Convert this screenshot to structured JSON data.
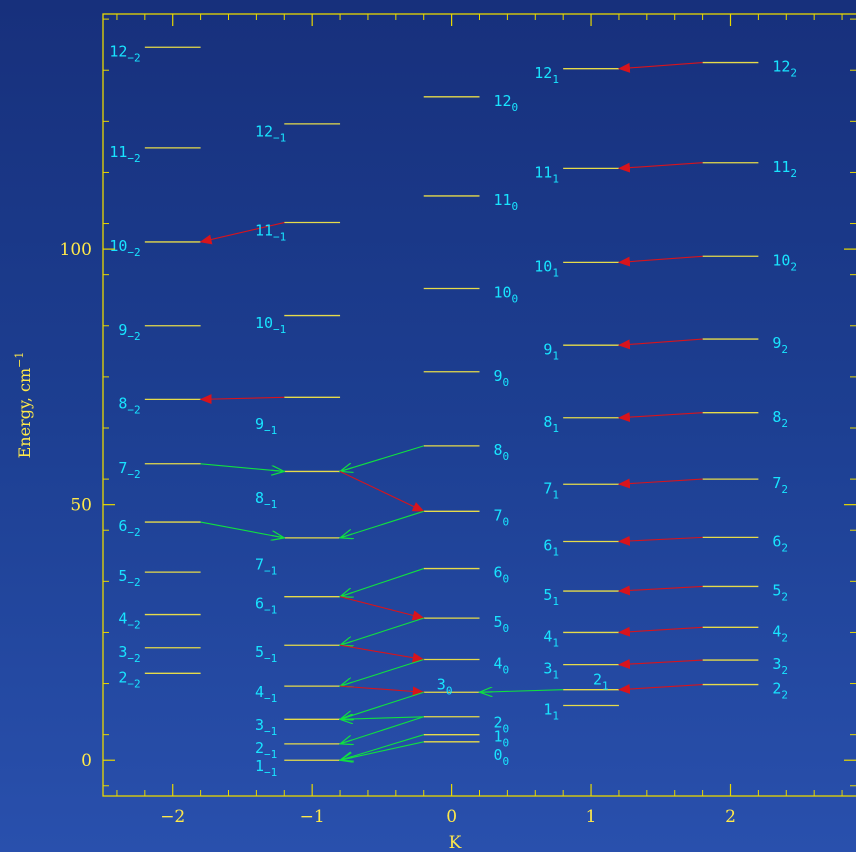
{
  "colors": {
    "frame": "#e8d800",
    "axis_text": "#ffe94a",
    "level_line": "#e6db4a",
    "label": "#18e4ff",
    "red_arrow": "#d8141c",
    "green_arrow": "#10e040"
  },
  "chart_data": {
    "type": "scatter",
    "xlabel": "K",
    "ylabel": "Energy, cm",
    "ylabel_sup": "−1",
    "xlim": [
      -2.5,
      2.9
    ],
    "ylim": [
      -7,
      146
    ],
    "x_ticks": [
      {
        "value": -2,
        "label": "−2"
      },
      {
        "value": -1,
        "label": "−1"
      },
      {
        "value": 0,
        "label": "0"
      },
      {
        "value": 1,
        "label": "1"
      },
      {
        "value": 2,
        "label": "2"
      }
    ],
    "y_ticks": [
      {
        "value": 0,
        "label": "0"
      },
      {
        "value": 50,
        "label": "50"
      },
      {
        "value": 100,
        "label": "100"
      }
    ],
    "levels": [
      {
        "x0": -2.2,
        "x1": -1.8,
        "y": 139.5,
        "n": "12",
        "k": "−2",
        "label_x": -2.23,
        "label_y": 138.7,
        "anchor": "end"
      },
      {
        "x0": -2.2,
        "x1": -1.8,
        "y": 119.8,
        "n": "11",
        "k": "−2",
        "label_x": -2.23,
        "label_y": 119.0,
        "anchor": "end"
      },
      {
        "x0": -2.2,
        "x1": -1.8,
        "y": 101.4,
        "n": "10",
        "k": "−2",
        "label_x": -2.23,
        "label_y": 100.6,
        "anchor": "end"
      },
      {
        "x0": -2.2,
        "x1": -1.8,
        "y": 85.0,
        "n": "9",
        "k": "−2",
        "label_x": -2.23,
        "label_y": 84.2,
        "anchor": "end"
      },
      {
        "x0": -2.2,
        "x1": -1.8,
        "y": 70.6,
        "n": "8",
        "k": "−2",
        "label_x": -2.23,
        "label_y": 69.8,
        "anchor": "end"
      },
      {
        "x0": -2.2,
        "x1": -1.8,
        "y": 58.0,
        "n": "7",
        "k": "−2",
        "label_x": -2.23,
        "label_y": 57.2,
        "anchor": "end"
      },
      {
        "x0": -2.2,
        "x1": -1.8,
        "y": 46.6,
        "n": "6",
        "k": "−2",
        "label_x": -2.23,
        "label_y": 45.8,
        "anchor": "end"
      },
      {
        "x0": -2.2,
        "x1": -1.8,
        "y": 36.8,
        "n": "5",
        "k": "−2",
        "label_x": -2.23,
        "label_y": 36.0,
        "anchor": "end"
      },
      {
        "x0": -2.2,
        "x1": -1.8,
        "y": 28.5,
        "n": "4",
        "k": "−2",
        "label_x": -2.23,
        "label_y": 27.7,
        "anchor": "end"
      },
      {
        "x0": -2.2,
        "x1": -1.8,
        "y": 22.0,
        "n": "3",
        "k": "−2",
        "label_x": -2.23,
        "label_y": 21.2,
        "anchor": "end"
      },
      {
        "x0": -2.2,
        "x1": -1.8,
        "y": 17.0,
        "n": "2",
        "k": "−2",
        "label_x": -2.23,
        "label_y": 16.2,
        "anchor": "end"
      },
      {
        "x0": -1.2,
        "x1": -0.8,
        "y": 124.5,
        "n": "12",
        "k": "−1",
        "label_x": -1.41,
        "label_y": 123.0,
        "anchor": "start"
      },
      {
        "x0": -1.2,
        "x1": -0.8,
        "y": 105.2,
        "n": "11",
        "k": "−1",
        "label_x": -1.41,
        "label_y": 103.6,
        "anchor": "start"
      },
      {
        "x0": -1.2,
        "x1": -0.8,
        "y": 87.0,
        "n": "10",
        "k": "−1",
        "label_x": -1.41,
        "label_y": 85.5,
        "anchor": "start"
      },
      {
        "x0": -1.2,
        "x1": -0.8,
        "y": 71.0,
        "n": "9",
        "k": "−1",
        "label_x": -1.41,
        "label_y": 65.8,
        "anchor": "start"
      },
      {
        "x0": -1.2,
        "x1": -0.8,
        "y": 56.5,
        "n": "8",
        "k": "−1",
        "label_x": -1.41,
        "label_y": 51.3,
        "anchor": "start"
      },
      {
        "x0": -1.2,
        "x1": -0.8,
        "y": 43.5,
        "n": "7",
        "k": "−1",
        "label_x": -1.41,
        "label_y": 38.3,
        "anchor": "start"
      },
      {
        "x0": -1.2,
        "x1": -0.8,
        "y": 32.0,
        "n": "6",
        "k": "−1",
        "label_x": -1.41,
        "label_y": 30.7,
        "anchor": "start"
      },
      {
        "x0": -1.2,
        "x1": -0.8,
        "y": 22.5,
        "n": "5",
        "k": "−1",
        "label_x": -1.41,
        "label_y": 21.2,
        "anchor": "start"
      },
      {
        "x0": -1.2,
        "x1": -0.8,
        "y": 14.5,
        "n": "4",
        "k": "−1",
        "label_x": -1.41,
        "label_y": 13.3,
        "anchor": "start"
      },
      {
        "x0": -1.2,
        "x1": -0.8,
        "y": 8.0,
        "n": "3",
        "k": "−1",
        "label_x": -1.41,
        "label_y": 6.9,
        "anchor": "start"
      },
      {
        "x0": -1.2,
        "x1": -0.8,
        "y": 3.2,
        "n": "2",
        "k": "−1",
        "label_x": -1.41,
        "label_y": 2.4,
        "anchor": "start"
      },
      {
        "x0": -1.2,
        "x1": -0.8,
        "y": 0.0,
        "n": "1",
        "k": "−1",
        "label_x": -1.41,
        "label_y": -1.1,
        "anchor": "start"
      },
      {
        "x0": -0.2,
        "x1": 0.2,
        "y": 129.8,
        "n": "12",
        "k": "0",
        "label_x": 0.3,
        "label_y": 129.0,
        "anchor": "start"
      },
      {
        "x0": -0.2,
        "x1": 0.2,
        "y": 110.4,
        "n": "11",
        "k": "0",
        "label_x": 0.3,
        "label_y": 109.6,
        "anchor": "start"
      },
      {
        "x0": -0.2,
        "x1": 0.2,
        "y": 92.3,
        "n": "10",
        "k": "0",
        "label_x": 0.3,
        "label_y": 91.5,
        "anchor": "start"
      },
      {
        "x0": -0.2,
        "x1": 0.2,
        "y": 76.0,
        "n": "9",
        "k": "0",
        "label_x": 0.3,
        "label_y": 75.2,
        "anchor": "start"
      },
      {
        "x0": -0.2,
        "x1": 0.2,
        "y": 61.5,
        "n": "8",
        "k": "0",
        "label_x": 0.3,
        "label_y": 60.7,
        "anchor": "start"
      },
      {
        "x0": -0.2,
        "x1": 0.2,
        "y": 48.7,
        "n": "7",
        "k": "0",
        "label_x": 0.3,
        "label_y": 47.9,
        "anchor": "start"
      },
      {
        "x0": -0.2,
        "x1": 0.2,
        "y": 37.5,
        "n": "6",
        "k": "0",
        "label_x": 0.3,
        "label_y": 36.7,
        "anchor": "start"
      },
      {
        "x0": -0.2,
        "x1": 0.2,
        "y": 27.8,
        "n": "5",
        "k": "0",
        "label_x": 0.3,
        "label_y": 27.0,
        "anchor": "start"
      },
      {
        "x0": -0.2,
        "x1": 0.2,
        "y": 19.7,
        "n": "4",
        "k": "0",
        "label_x": 0.3,
        "label_y": 18.9,
        "anchor": "start"
      },
      {
        "x0": -0.2,
        "x1": 0.2,
        "y": 13.3,
        "n": "3",
        "k": "0",
        "label_x": -0.05,
        "label_y": 14.8,
        "anchor": "middle"
      },
      {
        "x0": -0.2,
        "x1": 0.2,
        "y": 8.5,
        "n": "2",
        "k": "0",
        "label_x": 0.3,
        "label_y": 7.4,
        "anchor": "start"
      },
      {
        "x0": -0.2,
        "x1": 0.2,
        "y": 5.0,
        "n": "1",
        "k": "0",
        "label_x": 0.3,
        "label_y": 4.6,
        "anchor": "start"
      },
      {
        "x0": -0.2,
        "x1": 0.2,
        "y": 3.6,
        "n": "0",
        "k": "0",
        "label_x": 0.3,
        "label_y": 1.0,
        "anchor": "start"
      },
      {
        "x0": 0.8,
        "x1": 1.2,
        "y": 135.3,
        "n": "12",
        "k": "1",
        "label_x": 0.77,
        "label_y": 134.5,
        "anchor": "end"
      },
      {
        "x0": 0.8,
        "x1": 1.2,
        "y": 115.8,
        "n": "11",
        "k": "1",
        "label_x": 0.77,
        "label_y": 115.0,
        "anchor": "end"
      },
      {
        "x0": 0.8,
        "x1": 1.2,
        "y": 97.4,
        "n": "10",
        "k": "1",
        "label_x": 0.77,
        "label_y": 96.6,
        "anchor": "end"
      },
      {
        "x0": 0.8,
        "x1": 1.2,
        "y": 81.2,
        "n": "9",
        "k": "1",
        "label_x": 0.77,
        "label_y": 80.4,
        "anchor": "end"
      },
      {
        "x0": 0.8,
        "x1": 1.2,
        "y": 67.0,
        "n": "8",
        "k": "1",
        "label_x": 0.77,
        "label_y": 66.2,
        "anchor": "end"
      },
      {
        "x0": 0.8,
        "x1": 1.2,
        "y": 54.0,
        "n": "7",
        "k": "1",
        "label_x": 0.77,
        "label_y": 53.2,
        "anchor": "end"
      },
      {
        "x0": 0.8,
        "x1": 1.2,
        "y": 42.8,
        "n": "6",
        "k": "1",
        "label_x": 0.77,
        "label_y": 42.0,
        "anchor": "end"
      },
      {
        "x0": 0.8,
        "x1": 1.2,
        "y": 33.1,
        "n": "5",
        "k": "1",
        "label_x": 0.77,
        "label_y": 32.3,
        "anchor": "end"
      },
      {
        "x0": 0.8,
        "x1": 1.2,
        "y": 25.0,
        "n": "4",
        "k": "1",
        "label_x": 0.77,
        "label_y": 24.2,
        "anchor": "end"
      },
      {
        "x0": 0.8,
        "x1": 1.2,
        "y": 18.7,
        "n": "3",
        "k": "1",
        "label_x": 0.77,
        "label_y": 17.9,
        "anchor": "end"
      },
      {
        "x0": 0.8,
        "x1": 1.2,
        "y": 13.8,
        "n": "2",
        "k": "1",
        "label_x": 1.07,
        "label_y": 15.8,
        "anchor": "middle"
      },
      {
        "x0": 0.8,
        "x1": 1.2,
        "y": 10.7,
        "n": "1",
        "k": "1",
        "label_x": 0.77,
        "label_y": 9.9,
        "anchor": "end"
      },
      {
        "x0": 1.8,
        "x1": 2.2,
        "y": 136.5,
        "n": "12",
        "k": "2",
        "label_x": 2.3,
        "label_y": 135.7,
        "anchor": "start"
      },
      {
        "x0": 1.8,
        "x1": 2.2,
        "y": 116.9,
        "n": "11",
        "k": "2",
        "label_x": 2.3,
        "label_y": 116.1,
        "anchor": "start"
      },
      {
        "x0": 1.8,
        "x1": 2.2,
        "y": 98.6,
        "n": "10",
        "k": "2",
        "label_x": 2.3,
        "label_y": 97.8,
        "anchor": "start"
      },
      {
        "x0": 1.8,
        "x1": 2.2,
        "y": 82.4,
        "n": "9",
        "k": "2",
        "label_x": 2.3,
        "label_y": 81.6,
        "anchor": "start"
      },
      {
        "x0": 1.8,
        "x1": 2.2,
        "y": 68.0,
        "n": "8",
        "k": "2",
        "label_x": 2.3,
        "label_y": 67.2,
        "anchor": "start"
      },
      {
        "x0": 1.8,
        "x1": 2.2,
        "y": 55.0,
        "n": "7",
        "k": "2",
        "label_x": 2.3,
        "label_y": 54.2,
        "anchor": "start"
      },
      {
        "x0": 1.8,
        "x1": 2.2,
        "y": 43.6,
        "n": "6",
        "k": "2",
        "label_x": 2.3,
        "label_y": 42.8,
        "anchor": "start"
      },
      {
        "x0": 1.8,
        "x1": 2.2,
        "y": 34.0,
        "n": "5",
        "k": "2",
        "label_x": 2.3,
        "label_y": 33.2,
        "anchor": "start"
      },
      {
        "x0": 1.8,
        "x1": 2.2,
        "y": 26.0,
        "n": "4",
        "k": "2",
        "label_x": 2.3,
        "label_y": 25.2,
        "anchor": "start"
      },
      {
        "x0": 1.8,
        "x1": 2.2,
        "y": 19.6,
        "n": "3",
        "k": "2",
        "label_x": 2.3,
        "label_y": 18.8,
        "anchor": "start"
      },
      {
        "x0": 1.8,
        "x1": 2.2,
        "y": 14.8,
        "n": "2",
        "k": "2",
        "label_x": 2.3,
        "label_y": 14.0,
        "anchor": "start"
      }
    ],
    "transitions": [
      {
        "color": "red",
        "from": [
          -1.2,
          105.2
        ],
        "to": [
          -1.8,
          101.4
        ]
      },
      {
        "color": "red",
        "from": [
          -1.2,
          71.0
        ],
        "to": [
          -1.8,
          70.6
        ]
      },
      {
        "color": "green",
        "from": [
          -1.8,
          58.0
        ],
        "to": [
          -1.2,
          56.5
        ]
      },
      {
        "color": "green",
        "from": [
          -1.8,
          46.6
        ],
        "to": [
          -1.2,
          43.5
        ]
      },
      {
        "color": "green",
        "from": [
          -0.2,
          61.5
        ],
        "to": [
          -0.8,
          56.5
        ]
      },
      {
        "color": "red",
        "from": [
          -0.8,
          56.5
        ],
        "to": [
          -0.2,
          48.7
        ]
      },
      {
        "color": "green",
        "from": [
          -0.2,
          48.7
        ],
        "to": [
          -0.8,
          43.5
        ]
      },
      {
        "color": "green",
        "from": [
          -0.2,
          37.5
        ],
        "to": [
          -0.8,
          32.0
        ]
      },
      {
        "color": "red",
        "from": [
          -0.8,
          32.0
        ],
        "to": [
          -0.2,
          27.8
        ]
      },
      {
        "color": "green",
        "from": [
          -0.2,
          27.8
        ],
        "to": [
          -0.8,
          22.5
        ]
      },
      {
        "color": "red",
        "from": [
          -0.8,
          22.5
        ],
        "to": [
          -0.2,
          19.7
        ]
      },
      {
        "color": "green",
        "from": [
          -0.2,
          19.7
        ],
        "to": [
          -0.8,
          14.5
        ]
      },
      {
        "color": "red",
        "from": [
          -0.8,
          14.5
        ],
        "to": [
          -0.2,
          13.3
        ]
      },
      {
        "color": "green",
        "from": [
          -0.2,
          13.3
        ],
        "to": [
          -0.8,
          8.0
        ]
      },
      {
        "color": "green",
        "from": [
          -0.2,
          8.5
        ],
        "to": [
          -0.8,
          8.0
        ]
      },
      {
        "color": "green",
        "from": [
          -0.2,
          8.5
        ],
        "to": [
          -0.8,
          3.2
        ]
      },
      {
        "color": "green",
        "from": [
          -0.2,
          5.0
        ],
        "to": [
          -0.8,
          0.0
        ]
      },
      {
        "color": "green",
        "from": [
          -0.2,
          3.6
        ],
        "to": [
          -0.8,
          0.0
        ]
      },
      {
        "color": "green",
        "from": [
          0.8,
          13.8
        ],
        "to": [
          0.2,
          13.3
        ]
      },
      {
        "color": "red",
        "from": [
          1.8,
          136.5
        ],
        "to": [
          1.2,
          135.3
        ]
      },
      {
        "color": "red",
        "from": [
          1.8,
          116.9
        ],
        "to": [
          1.2,
          115.8
        ]
      },
      {
        "color": "red",
        "from": [
          1.8,
          98.6
        ],
        "to": [
          1.2,
          97.4
        ]
      },
      {
        "color": "red",
        "from": [
          1.8,
          82.4
        ],
        "to": [
          1.2,
          81.2
        ]
      },
      {
        "color": "red",
        "from": [
          1.8,
          68.0
        ],
        "to": [
          1.2,
          67.0
        ]
      },
      {
        "color": "red",
        "from": [
          1.8,
          55.0
        ],
        "to": [
          1.2,
          54.0
        ]
      },
      {
        "color": "red",
        "from": [
          1.8,
          43.6
        ],
        "to": [
          1.2,
          42.8
        ]
      },
      {
        "color": "red",
        "from": [
          1.8,
          34.0
        ],
        "to": [
          1.2,
          33.1
        ]
      },
      {
        "color": "red",
        "from": [
          1.8,
          26.0
        ],
        "to": [
          1.2,
          25.0
        ]
      },
      {
        "color": "red",
        "from": [
          1.8,
          19.6
        ],
        "to": [
          1.2,
          18.7
        ]
      },
      {
        "color": "red",
        "from": [
          1.8,
          14.8
        ],
        "to": [
          1.2,
          13.8
        ]
      }
    ]
  }
}
